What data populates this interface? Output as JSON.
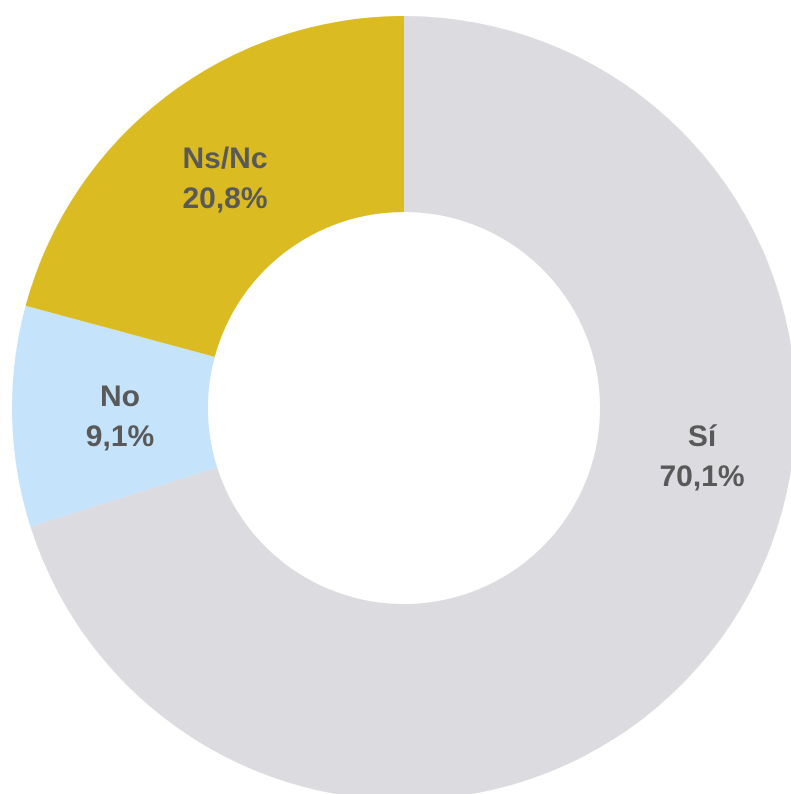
{
  "chart_data": {
    "type": "donut",
    "categories": [
      "Sí",
      "No",
      "Ns/Nc"
    ],
    "values": [
      70.1,
      9.1,
      20.8
    ],
    "value_labels": [
      "70,1%",
      "9,1%",
      "20,8%"
    ],
    "colors": [
      "#dcdce0",
      "#c5e3fb",
      "#dbbb22"
    ]
  }
}
